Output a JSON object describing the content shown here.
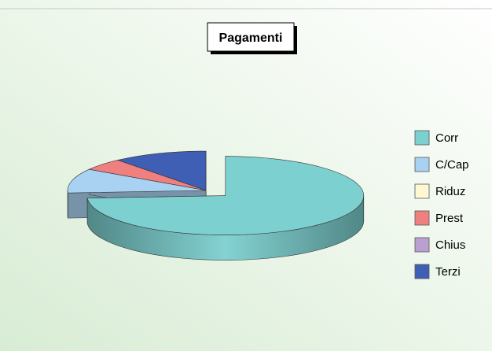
{
  "chart_data": {
    "type": "pie",
    "title": "Pagamenti",
    "legend_position": "right",
    "categories": [
      "Corr",
      "C/Cap",
      "Riduz",
      "Prest",
      "Chius",
      "Terzi"
    ],
    "values": [
      74,
      10,
      0,
      5,
      0,
      11
    ],
    "colors": [
      "#7dd0d0",
      "#a9d2f2",
      "#fff6d2",
      "#f08080",
      "#b9a0d0",
      "#3f5fb5"
    ],
    "exploded": "Corr"
  }
}
